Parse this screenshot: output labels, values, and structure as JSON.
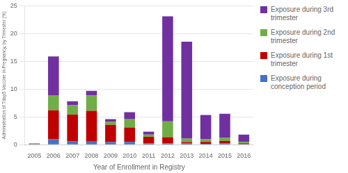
{
  "chart_data": {
    "type": "bar",
    "stacked": true,
    "grid": true,
    "legend": "right",
    "xlabel": "Year of Enrollment in Registry",
    "ylabel": "Administration of Tdap5 Vaccine in Pregnancy, by Trimester (%)",
    "categories": [
      "2005",
      "2006",
      "2007",
      "2008",
      "2009",
      "2010",
      "2011",
      "2012",
      "2013",
      "2014",
      "2015",
      "2016"
    ],
    "series": [
      {
        "name": "Exposure during\nconception period",
        "color": "#4472C4",
        "values": [
          0.05,
          1.0,
          0.6,
          0.55,
          0.45,
          0.5,
          0.2,
          0.25,
          0.2,
          0.15,
          0.2,
          0.1
        ]
      },
      {
        "name": "Exposure during 1st\ntrimester",
        "color": "#C00000",
        "values": [
          0.0,
          5.2,
          4.8,
          5.55,
          3.1,
          2.6,
          1.2,
          1.1,
          0.25,
          0.35,
          0.45,
          0.15
        ]
      },
      {
        "name": "Exposure during 2nd\ntrimester",
        "color": "#70AD47",
        "values": [
          0.05,
          2.7,
          1.7,
          2.75,
          0.55,
          1.55,
          0.4,
          2.85,
          0.65,
          0.5,
          0.55,
          0.25
        ]
      },
      {
        "name": "Exposure during 3rd\ntrimester",
        "color": "#7030A0",
        "values": [
          0.1,
          7.0,
          0.7,
          0.85,
          0.5,
          1.2,
          0.55,
          18.9,
          17.45,
          4.35,
          4.35,
          1.3
        ]
      }
    ],
    "ylim": [
      0,
      25
    ],
    "yticks": [
      0,
      5,
      10,
      15,
      20,
      25
    ]
  }
}
